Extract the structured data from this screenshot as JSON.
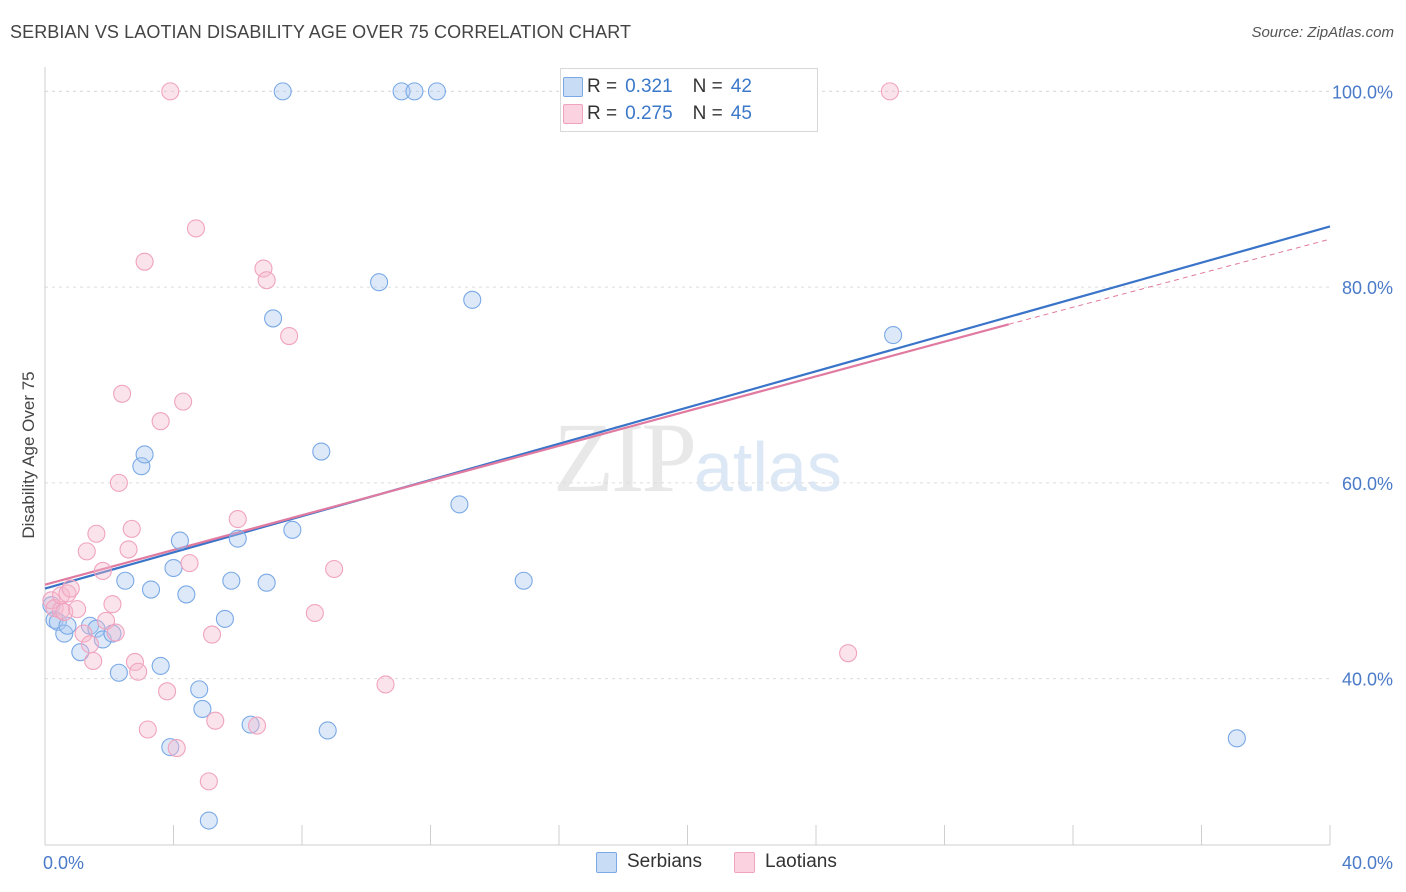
{
  "title": "SERBIAN VS LAOTIAN DISABILITY AGE OVER 75 CORRELATION CHART",
  "source": "Source: ZipAtlas.com",
  "watermark": {
    "zip": "ZIP",
    "atlas": "atlas"
  },
  "legend": {
    "rows": [
      {
        "r_label": "R =",
        "r_value": "0.321",
        "n_label": "N =",
        "n_value": "42",
        "color": "#a9c8f0"
      },
      {
        "r_label": "R =",
        "r_value": "0.275",
        "n_label": "N =",
        "n_value": "45",
        "color": "#f5b8cd"
      }
    ]
  },
  "bottom_legend": {
    "series1": "Serbians",
    "series2": "Laotians"
  },
  "chart_data": {
    "type": "scatter",
    "title": "SERBIAN VS LAOTIAN DISABILITY AGE OVER 75 CORRELATION CHART",
    "xlabel": "",
    "ylabel": "Disability Age Over 75",
    "xlim": [
      0,
      40
    ],
    "ylim": [
      23,
      103
    ],
    "x_tick_labels": [
      "0.0%",
      "40.0%"
    ],
    "y_ticks": [
      40,
      60,
      80,
      100
    ],
    "y_tick_labels": [
      "40.0%",
      "60.0%",
      "80.0%",
      "100.0%"
    ],
    "grid": true,
    "legend_position": "top-center",
    "series": [
      {
        "name": "Serbians",
        "color": "#7aa9e6",
        "trend_color": "#3a74c9",
        "trend": {
          "x0": 0,
          "y0": 49.2,
          "x1": 40,
          "y1": 86.2
        },
        "points": [
          [
            0.2,
            47.5
          ],
          [
            0.3,
            46.0
          ],
          [
            0.4,
            45.8
          ],
          [
            0.6,
            44.6
          ],
          [
            0.7,
            45.4
          ],
          [
            1.1,
            42.7
          ],
          [
            1.4,
            45.4
          ],
          [
            1.6,
            45.1
          ],
          [
            1.8,
            44.0
          ],
          [
            2.1,
            44.6
          ],
          [
            2.3,
            40.6
          ],
          [
            2.5,
            50.0
          ],
          [
            3.0,
            61.7
          ],
          [
            3.1,
            62.9
          ],
          [
            3.3,
            49.1
          ],
          [
            3.6,
            41.3
          ],
          [
            3.9,
            33.0
          ],
          [
            4.0,
            51.3
          ],
          [
            4.2,
            54.1
          ],
          [
            4.4,
            48.6
          ],
          [
            4.8,
            38.9
          ],
          [
            4.9,
            36.9
          ],
          [
            5.1,
            25.5
          ],
          [
            5.6,
            46.1
          ],
          [
            5.8,
            50.0
          ],
          [
            6.0,
            54.3
          ],
          [
            6.4,
            35.3
          ],
          [
            6.9,
            49.8
          ],
          [
            7.1,
            76.8
          ],
          [
            7.4,
            100.0
          ],
          [
            7.7,
            55.2
          ],
          [
            8.6,
            63.2
          ],
          [
            8.8,
            34.7
          ],
          [
            10.4,
            80.5
          ],
          [
            11.1,
            100.0
          ],
          [
            11.5,
            100.0
          ],
          [
            12.2,
            100.0
          ],
          [
            12.9,
            57.8
          ],
          [
            13.3,
            78.7
          ],
          [
            14.9,
            50.0
          ],
          [
            26.4,
            75.1
          ],
          [
            37.1,
            33.9
          ]
        ]
      },
      {
        "name": "Laotians",
        "color": "#f0a3bf",
        "trend_color": "#e07aa0",
        "trend": {
          "x0": 0,
          "y0": 49.6,
          "x1": 30,
          "y1": 76.2,
          "x2": 40,
          "y2": 84.9
        },
        "points": [
          [
            0.2,
            48.0
          ],
          [
            0.3,
            47.2
          ],
          [
            0.5,
            47.0
          ],
          [
            0.5,
            48.5
          ],
          [
            0.6,
            46.8
          ],
          [
            0.7,
            48.7
          ],
          [
            0.8,
            49.2
          ],
          [
            1.0,
            47.1
          ],
          [
            1.2,
            44.6
          ],
          [
            1.3,
            53.0
          ],
          [
            1.4,
            43.5
          ],
          [
            1.5,
            41.8
          ],
          [
            1.6,
            54.8
          ],
          [
            1.8,
            51.0
          ],
          [
            1.9,
            45.9
          ],
          [
            2.1,
            47.6
          ],
          [
            2.2,
            44.7
          ],
          [
            2.3,
            60.0
          ],
          [
            2.4,
            69.1
          ],
          [
            2.6,
            53.2
          ],
          [
            2.7,
            55.3
          ],
          [
            2.8,
            41.7
          ],
          [
            2.9,
            40.7
          ],
          [
            3.1,
            82.6
          ],
          [
            3.2,
            34.8
          ],
          [
            3.6,
            66.3
          ],
          [
            3.8,
            38.7
          ],
          [
            3.9,
            100.0
          ],
          [
            4.1,
            32.9
          ],
          [
            4.3,
            68.3
          ],
          [
            4.5,
            51.8
          ],
          [
            4.7,
            86.0
          ],
          [
            5.1,
            29.5
          ],
          [
            5.2,
            44.5
          ],
          [
            5.3,
            35.7
          ],
          [
            6.0,
            56.3
          ],
          [
            6.6,
            35.2
          ],
          [
            6.8,
            81.9
          ],
          [
            6.9,
            80.7
          ],
          [
            7.6,
            75.0
          ],
          [
            8.4,
            46.7
          ],
          [
            9.0,
            51.2
          ],
          [
            10.6,
            39.4
          ],
          [
            25.0,
            42.6
          ],
          [
            26.3,
            100.0
          ]
        ]
      }
    ]
  }
}
